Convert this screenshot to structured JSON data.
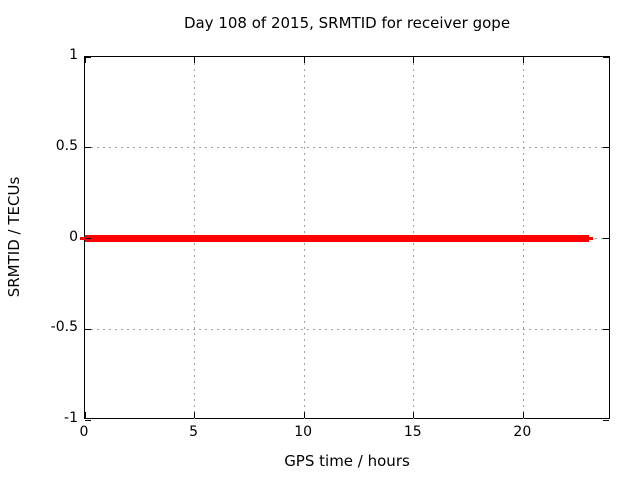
{
  "chart_data": {
    "type": "line",
    "title": "Day 108 of 2015, SRMTID for receiver gope",
    "xlabel": "GPS time / hours",
    "ylabel": "SRMTID / TECUs",
    "xlim": [
      0,
      24
    ],
    "ylim": [
      -1,
      1
    ],
    "xticks": {
      "values": [
        0,
        5,
        10,
        15,
        20
      ],
      "labels": [
        "0",
        "5",
        "10",
        "15",
        "20"
      ]
    },
    "yticks": {
      "values": [
        -1,
        -0.5,
        0,
        0.5,
        1
      ],
      "labels": [
        "-1",
        "-0.5",
        "0",
        "0.5",
        "1"
      ]
    },
    "grid": true,
    "grid_style": "dotted",
    "legend": "none",
    "series": [
      {
        "name": "SRMTID",
        "color": "#ff0000",
        "points": [
          [
            0,
            0
          ],
          [
            23,
            0
          ]
        ],
        "x_start": 0,
        "x_end": 23,
        "y_value": 0
      }
    ],
    "colors": {
      "line": "#ff0000",
      "grid": "#a0a0a0",
      "border": "#000000",
      "text": "#000000",
      "background": "#ffffff"
    }
  }
}
